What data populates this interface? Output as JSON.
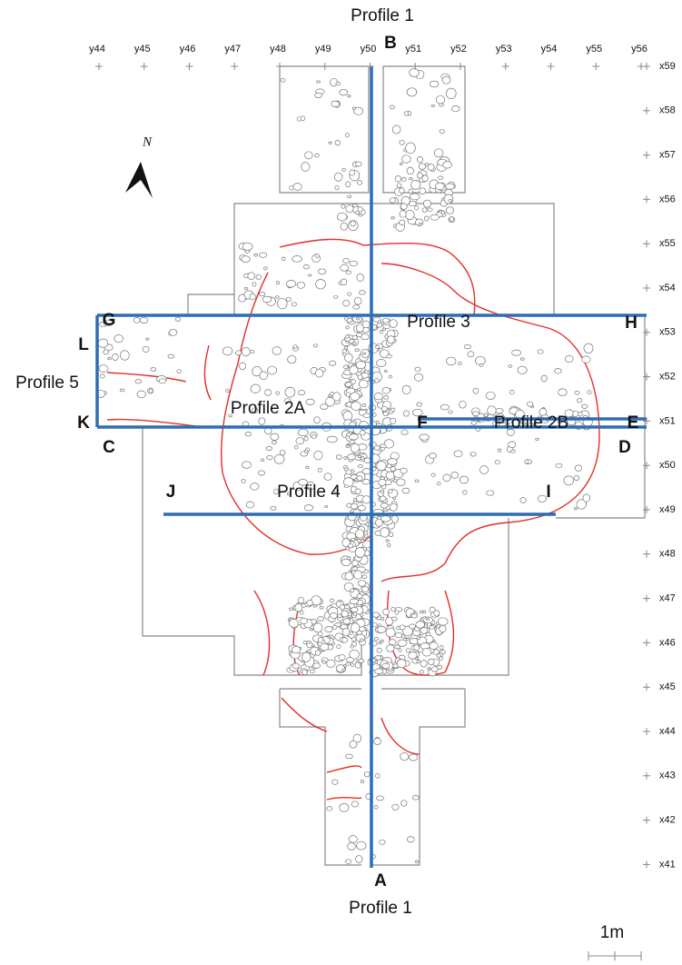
{
  "titles": {
    "top": "Profile 1",
    "bottom": "Profile 1"
  },
  "grid": {
    "columns": [
      "y44",
      "y45",
      "y46",
      "y47",
      "y48",
      "y49",
      "y50",
      "y51",
      "y52",
      "y53",
      "y54",
      "y55",
      "y56"
    ],
    "rows": [
      "x59",
      "x58",
      "x57",
      "x56",
      "x55",
      "x54",
      "x53",
      "x52",
      "x51",
      "x50",
      "x49",
      "x48",
      "x47",
      "x46",
      "x45",
      "x44",
      "x43",
      "x42",
      "x41"
    ]
  },
  "profiles": {
    "p3": "Profile 3",
    "p5": "Profile 5",
    "p2a": "Profile 2A",
    "p2b": "Profile 2B",
    "p4": "Profile 4"
  },
  "points": {
    "a": "A",
    "b": "B",
    "c": "C",
    "d": "D",
    "e": "E",
    "f": "F",
    "g": "G",
    "h": "H",
    "i": "I",
    "j": "J",
    "k": "K",
    "l": "L"
  },
  "north": "N",
  "scale": "1m"
}
